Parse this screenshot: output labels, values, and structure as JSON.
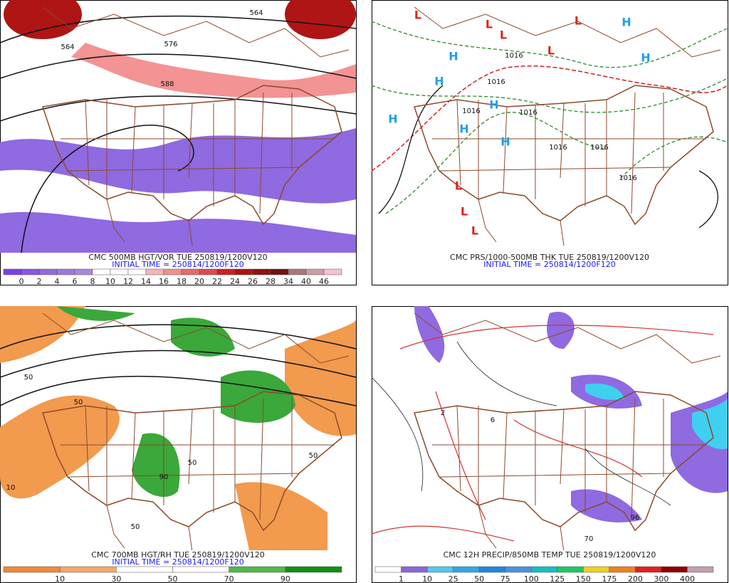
{
  "panels": [
    {
      "caption": "CMC 500MB HGT/VOR TUE 250819/1200V120",
      "initial_time": "INITIAL TIME = 250814/1200F120",
      "map_labels": [
        {
          "text": "564",
          "color": "#111"
        },
        {
          "text": "576",
          "color": "#111"
        },
        {
          "text": "588",
          "color": "#111"
        },
        {
          "text": "564",
          "color": "#111"
        }
      ],
      "colorbar": {
        "labels": [
          "0",
          "2",
          "4",
          "6",
          "8",
          "10",
          "12",
          "14",
          "16",
          "18",
          "20",
          "22",
          "24",
          "26",
          "28",
          "34",
          "40",
          "46"
        ],
        "colors": [
          "#7a3ff0",
          "#8a55ea",
          "#9468e4",
          "#9c78de",
          "#a888dc",
          "#ffffff",
          "#ffffff",
          "#ffffff",
          "#f7b4b4",
          "#f09090",
          "#e86a6a",
          "#e04848",
          "#cc2020",
          "#b01010",
          "#901010",
          "#701010",
          "#a87878",
          "#c8a0a8",
          "#f8c0d0"
        ]
      }
    },
    {
      "caption": "CMC PRS/1000-500MB THK TUE 250819/1200V120",
      "initial_time": "INITIAL TIME = 250814/1200F120",
      "map_labels": [
        {
          "text": "L",
          "color": "#e02020"
        },
        {
          "text": "L",
          "color": "#e02020"
        },
        {
          "text": "L",
          "color": "#e02020"
        },
        {
          "text": "L",
          "color": "#e02020"
        },
        {
          "text": "L",
          "color": "#e02020"
        },
        {
          "text": "L",
          "color": "#e02020"
        },
        {
          "text": "L",
          "color": "#e02020"
        },
        {
          "text": "L",
          "color": "#e02020"
        },
        {
          "text": "H",
          "color": "#1ea0e6"
        },
        {
          "text": "H",
          "color": "#1ea0e6"
        },
        {
          "text": "H",
          "color": "#1ea0e6"
        },
        {
          "text": "H",
          "color": "#1ea0e6"
        },
        {
          "text": "H",
          "color": "#1ea0e6"
        },
        {
          "text": "H",
          "color": "#1ea0e6"
        },
        {
          "text": "H",
          "color": "#1ea0e6"
        },
        {
          "text": "H",
          "color": "#1ea0e6"
        },
        {
          "text": "1016",
          "color": "#111"
        },
        {
          "text": "1016",
          "color": "#111"
        },
        {
          "text": "1016",
          "color": "#111"
        },
        {
          "text": "1016",
          "color": "#111"
        },
        {
          "text": "1016",
          "color": "#111"
        },
        {
          "text": "1016",
          "color": "#111"
        },
        {
          "text": "1016",
          "color": "#111"
        }
      ]
    },
    {
      "caption": "CMC 700MB HGT/RH TUE 250819/1200V120",
      "initial_time": "INITIAL TIME = 250814/1200F120",
      "map_labels": [
        {
          "text": "50",
          "color": "#111"
        },
        {
          "text": "50",
          "color": "#111"
        },
        {
          "text": "50",
          "color": "#111"
        },
        {
          "text": "90",
          "color": "#111"
        },
        {
          "text": "10",
          "color": "#111"
        },
        {
          "text": "50",
          "color": "#111"
        },
        {
          "text": "50",
          "color": "#111"
        }
      ],
      "colorbar": {
        "labels": [
          "10",
          "30",
          "50",
          "70",
          "90"
        ],
        "colors": [
          "#f08a3a",
          "#f4a868",
          "#ffffff",
          "#ffffff",
          "#50b848",
          "#119011"
        ]
      }
    },
    {
      "caption": "CMC 12H PRECIP/850MB TEMP TUE 250819/1200V120",
      "map_labels": [
        {
          "text": "2",
          "color": "#d83030"
        },
        {
          "text": "6",
          "color": "#111"
        },
        {
          "text": "70",
          "color": "#111"
        },
        {
          "text": "96",
          "color": "#111"
        }
      ],
      "colorbar": {
        "labels": [
          "1",
          "10",
          "25",
          "50",
          "75",
          "100",
          "125",
          "150",
          "175",
          "200",
          "300",
          "400"
        ],
        "colors": [
          "#ffffff",
          "#8c64dc",
          "#50c8f0",
          "#30a8e8",
          "#1f86e0",
          "#4a90e0",
          "#12c0c0",
          "#20c860",
          "#f0d020",
          "#f08020",
          "#e02020",
          "#900000",
          "#c0a0b0"
        ]
      }
    }
  ]
}
